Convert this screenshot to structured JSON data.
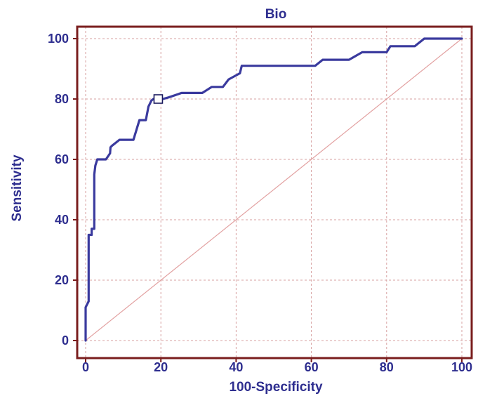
{
  "chart_data": {
    "type": "line",
    "title": "Bio",
    "xlabel": "100-Specificity",
    "ylabel": "Sensitivity",
    "xlim": [
      0,
      100
    ],
    "ylim": [
      0,
      100
    ],
    "xticks": [
      "0",
      "20",
      "40",
      "60",
      "80",
      "100"
    ],
    "yticks": [
      "0",
      "20",
      "40",
      "60",
      "80",
      "100"
    ],
    "grid": true,
    "series": [
      {
        "color": "#3a3a9e",
        "x": [
          0,
          0,
          0.8,
          0.8,
          1.6,
          1.6,
          2.3,
          2.3,
          2.6,
          3.1,
          5.4,
          6.5,
          6.6,
          7.0,
          9.0,
          12.7,
          14.3,
          16.0,
          16.7,
          17.5,
          18.0,
          19.5,
          20.5,
          22.0,
          25.5,
          31.0,
          33.5,
          36.5,
          38.0,
          41.0,
          41.5,
          61.0,
          63.0,
          70.0,
          73.5,
          80.0,
          81.0,
          87.5,
          90.0,
          100
        ],
        "y": [
          0,
          11,
          13,
          35,
          35,
          37,
          37,
          55,
          58,
          60,
          60,
          62,
          64,
          64.5,
          66.5,
          66.5,
          73,
          73,
          77.5,
          79.5,
          80,
          80,
          80,
          80.5,
          82,
          82,
          84,
          84,
          86.5,
          88.5,
          91,
          91,
          93,
          93,
          95.5,
          95.5,
          97.5,
          97.5,
          100,
          100
        ]
      },
      {
        "name": "",
        "color": "#e2a0a0",
        "x": [
          0,
          100
        ],
        "y": [
          0,
          100
        ]
      }
    ],
    "marker": {
      "x": 19.3,
      "y": 80
    }
  },
  "colors": {
    "frame": "#7a1e1e",
    "grid": "#d7a0a0",
    "text": "#2e2e8f",
    "curve": "#3a3a9e",
    "diagonal": "#e2a0a0"
  }
}
